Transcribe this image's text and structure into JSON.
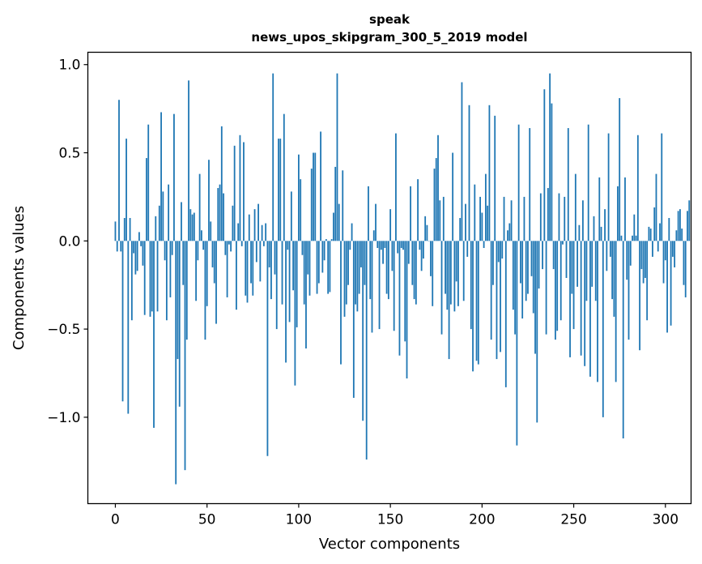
{
  "chart_data": {
    "type": "bar",
    "title": "speak",
    "subtitle": "news_upos_skipgram_300_5_2019 model",
    "xlabel": "Vector components",
    "ylabel": "Components values",
    "xlim": [
      -15,
      314
    ],
    "ylim": [
      -1.49,
      1.07
    ],
    "xticks": [
      0,
      50,
      100,
      150,
      200,
      250,
      300
    ],
    "yticks": [
      -1.0,
      -0.5,
      0.0,
      0.5,
      1.0
    ],
    "ytick_labels": [
      "−1.0",
      "−0.5",
      "0.0",
      "0.5",
      "1.0"
    ],
    "bar_color": "#1f77b4",
    "values": [
      0.11,
      -0.06,
      0.8,
      -0.06,
      -0.91,
      0.13,
      0.58,
      -0.98,
      0.13,
      -0.45,
      -0.07,
      -0.19,
      -0.17,
      0.05,
      -0.03,
      -0.14,
      -0.42,
      0.47,
      0.66,
      -0.43,
      -0.4,
      -1.06,
      0.14,
      -0.4,
      0.2,
      0.73,
      0.28,
      -0.11,
      -0.45,
      0.32,
      -0.32,
      -0.08,
      0.72,
      -1.38,
      -0.67,
      -0.94,
      0.22,
      -0.25,
      -1.3,
      -0.56,
      0.91,
      0.18,
      0.15,
      0.16,
      -0.34,
      -0.11,
      0.38,
      0.06,
      -0.05,
      -0.56,
      -0.37,
      0.46,
      0.11,
      -0.15,
      -0.24,
      -0.47,
      0.3,
      0.32,
      0.65,
      0.27,
      -0.08,
      -0.32,
      -0.02,
      -0.06,
      0.2,
      0.54,
      -0.39,
      0.1,
      0.6,
      -0.03,
      0.56,
      -0.31,
      -0.35,
      0.15,
      -0.24,
      -0.31,
      0.18,
      -0.12,
      0.21,
      -0.23,
      0.09,
      -0.03,
      0.1,
      -1.22,
      -0.15,
      -0.33,
      0.95,
      -0.19,
      -0.5,
      0.58,
      0.58,
      -0.36,
      0.72,
      -0.69,
      -0.05,
      -0.46,
      0.28,
      -0.28,
      -0.82,
      -0.49,
      0.49,
      0.35,
      -0.08,
      -0.36,
      -0.61,
      -0.19,
      -0.31,
      0.41,
      0.5,
      0.5,
      -0.3,
      -0.24,
      0.62,
      -0.18,
      -0.11,
      0.01,
      -0.3,
      -0.29,
      0.01,
      0.16,
      0.42,
      0.95,
      0.21,
      -0.7,
      0.4,
      -0.43,
      -0.36,
      -0.25,
      -0.05,
      0.1,
      -0.89,
      -0.36,
      -0.4,
      -0.3,
      -0.15,
      -1.02,
      -0.25,
      -1.24,
      0.31,
      -0.33,
      -0.52,
      0.06,
      0.21,
      -0.04,
      -0.5,
      -0.05,
      -0.13,
      -0.04,
      -0.3,
      -0.33,
      0.18,
      -0.17,
      -0.51,
      0.61,
      -0.07,
      -0.65,
      -0.04,
      -0.05,
      -0.57,
      -0.78,
      -0.13,
      0.31,
      -0.25,
      -0.33,
      -0.36,
      0.35,
      -0.05,
      -0.17,
      -0.1,
      0.14,
      0.09,
      0.0,
      -0.2,
      -0.37,
      0.41,
      0.47,
      0.6,
      0.23,
      -0.53,
      0.25,
      -0.3,
      -0.39,
      -0.67,
      -0.36,
      0.5,
      -0.4,
      -0.23,
      -0.37,
      0.13,
      0.9,
      -0.34,
      0.21,
      -0.09,
      0.77,
      -0.5,
      -0.74,
      0.32,
      -0.68,
      -0.7,
      0.25,
      0.16,
      -0.04,
      0.38,
      0.2,
      0.77,
      -0.56,
      -0.25,
      0.71,
      -0.67,
      -0.12,
      -0.63,
      -0.1,
      0.25,
      -0.83,
      0.06,
      0.1,
      0.23,
      -0.39,
      -0.53,
      -1.16,
      0.66,
      -0.24,
      -0.44,
      0.25,
      -0.34,
      -0.3,
      0.64,
      -0.2,
      -0.41,
      -0.64,
      -1.03,
      -0.27,
      0.27,
      -0.16,
      0.86,
      -0.53,
      0.3,
      0.95,
      0.78,
      -0.16,
      -0.56,
      -0.51,
      0.27,
      -0.45,
      -0.02,
      0.25,
      -0.21,
      0.64,
      -0.66,
      -0.3,
      -0.5,
      0.38,
      -0.26,
      0.09,
      -0.65,
      0.23,
      -0.71,
      -0.34,
      0.66,
      -0.77,
      -0.26,
      0.14,
      -0.34,
      -0.8,
      0.36,
      0.08,
      -1.0,
      0.18,
      -0.17,
      0.61,
      -0.09,
      -0.33,
      -0.43,
      -0.8,
      0.31,
      0.81,
      0.03,
      -1.12,
      0.36,
      -0.22,
      -0.56,
      -0.14,
      0.03,
      0.15,
      0.03,
      0.6,
      -0.62,
      -0.16,
      -0.24,
      -0.21,
      -0.45,
      0.08,
      0.07,
      -0.09,
      0.19,
      0.38,
      -0.06,
      0.1,
      0.61,
      -0.24,
      -0.11,
      -0.52,
      0.13,
      -0.48,
      -0.09,
      -0.15,
      0.06,
      0.17,
      0.18,
      0.07,
      -0.25,
      -0.32,
      0.17,
      0.23
    ]
  }
}
